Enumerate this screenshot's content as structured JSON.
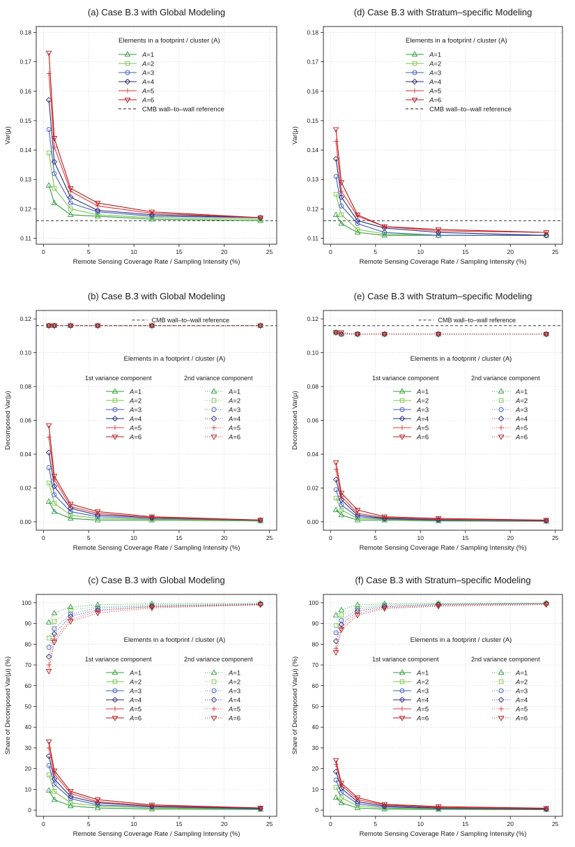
{
  "shared": {
    "xlabel": "Remote Sensing Coverage Rate / Sampling Intensity (%)",
    "x": [
      0.6,
      1.2,
      3,
      6,
      12,
      24
    ],
    "xticks": [
      0,
      5,
      10,
      15,
      20,
      25
    ],
    "a_values": [
      "1",
      "2",
      "3",
      "4",
      "5",
      "6"
    ],
    "legend_title": "Elements in a footprint / cluster (A)",
    "legend_sub1": "1st variance component",
    "legend_sub2": "2nd variance component",
    "cmb_label": "CMB wall–to–wall reference",
    "colors": [
      "#2e9e3c",
      "#79c447",
      "#3b5cc4",
      "#2b2b7a",
      "#e03a3a",
      "#b01a1a"
    ],
    "markers": [
      "triangle-up",
      "square",
      "circle",
      "diamond",
      "plus",
      "triangle-down"
    ]
  },
  "chart_data": [
    {
      "id": "a",
      "type": "line",
      "title": "(a) Case B.3 with Global Modeling",
      "ylabel": "Var(μ)",
      "ylim": [
        0.108,
        0.182
      ],
      "yticks": [
        "0.11",
        "0.12",
        "0.13",
        "0.14",
        "0.15",
        "0.16",
        "0.17",
        "0.18"
      ],
      "reference": 0.116,
      "series": [
        {
          "name": "A=1",
          "values": [
            0.128,
            0.122,
            0.118,
            0.1175,
            0.1165,
            0.116
          ]
        },
        {
          "name": "A=2",
          "values": [
            0.139,
            0.127,
            0.12,
            0.118,
            0.117,
            0.1165
          ]
        },
        {
          "name": "A=3",
          "values": [
            0.147,
            0.132,
            0.122,
            0.119,
            0.1175,
            0.117
          ]
        },
        {
          "name": "A=4",
          "values": [
            0.157,
            0.136,
            0.124,
            0.1195,
            0.118,
            0.117
          ]
        },
        {
          "name": "A=5",
          "values": [
            0.166,
            0.141,
            0.126,
            0.121,
            0.1185,
            0.117
          ]
        },
        {
          "name": "A=6",
          "values": [
            0.173,
            0.144,
            0.127,
            0.122,
            0.119,
            0.117
          ]
        }
      ]
    },
    {
      "id": "d",
      "type": "line",
      "title": "(d) Case B.3 with Stratum–specific Modeling",
      "ylabel": "Var(μ)",
      "ylim": [
        0.108,
        0.182
      ],
      "yticks": [
        "0.11",
        "0.12",
        "0.13",
        "0.14",
        "0.15",
        "0.16",
        "0.17",
        "0.18"
      ],
      "reference": 0.116,
      "series": [
        {
          "name": "A=1",
          "values": [
            0.118,
            0.115,
            0.112,
            0.111,
            0.111,
            0.111
          ]
        },
        {
          "name": "A=2",
          "values": [
            0.125,
            0.118,
            0.113,
            0.1115,
            0.111,
            0.111
          ]
        },
        {
          "name": "A=3",
          "values": [
            0.131,
            0.121,
            0.115,
            0.112,
            0.111,
            0.111
          ]
        },
        {
          "name": "A=4",
          "values": [
            0.137,
            0.124,
            0.116,
            0.1135,
            0.112,
            0.111
          ]
        },
        {
          "name": "A=5",
          "values": [
            0.143,
            0.126,
            0.1175,
            0.114,
            0.1125,
            0.112
          ]
        },
        {
          "name": "A=6",
          "values": [
            0.147,
            0.129,
            0.118,
            0.114,
            0.113,
            0.112
          ]
        }
      ]
    },
    {
      "id": "b",
      "type": "line",
      "title": "(b) Case B.3 with Global Modeling",
      "ylabel": "Decomposed Var(μ)",
      "ylim": [
        -0.005,
        0.125
      ],
      "yticks": [
        "0.00",
        "0.02",
        "0.04",
        "0.06",
        "0.08",
        "0.10",
        "0.12"
      ],
      "reference": 0.116,
      "series_first": [
        {
          "name": "A=1",
          "values": [
            0.012,
            0.006,
            0.002,
            0.001,
            0.001,
            0.0005
          ]
        },
        {
          "name": "A=2",
          "values": [
            0.023,
            0.011,
            0.004,
            0.002,
            0.0015,
            0.0005
          ]
        },
        {
          "name": "A=3",
          "values": [
            0.032,
            0.016,
            0.006,
            0.003,
            0.002,
            0.0008
          ]
        },
        {
          "name": "A=4",
          "values": [
            0.041,
            0.021,
            0.008,
            0.004,
            0.0025,
            0.001
          ]
        },
        {
          "name": "A=5",
          "values": [
            0.05,
            0.025,
            0.009,
            0.005,
            0.0025,
            0.001
          ]
        },
        {
          "name": "A=6",
          "values": [
            0.057,
            0.027,
            0.0105,
            0.006,
            0.003,
            0.001
          ]
        }
      ],
      "series_second": [
        {
          "name": "A=1",
          "values": [
            0.116,
            0.116,
            0.116,
            0.116,
            0.116,
            0.116
          ]
        },
        {
          "name": "A=2",
          "values": [
            0.116,
            0.116,
            0.116,
            0.116,
            0.116,
            0.116
          ]
        },
        {
          "name": "A=3",
          "values": [
            0.116,
            0.116,
            0.116,
            0.116,
            0.116,
            0.116
          ]
        },
        {
          "name": "A=4",
          "values": [
            0.116,
            0.116,
            0.116,
            0.116,
            0.116,
            0.116
          ]
        },
        {
          "name": "A=5",
          "values": [
            0.116,
            0.116,
            0.116,
            0.116,
            0.116,
            0.116
          ]
        },
        {
          "name": "A=6",
          "values": [
            0.116,
            0.116,
            0.116,
            0.116,
            0.116,
            0.116
          ]
        }
      ]
    },
    {
      "id": "e",
      "type": "line",
      "title": "(e) Case B.3 with Stratum–specific Modeling",
      "ylabel": "Decomposed Var(μ)",
      "ylim": [
        -0.005,
        0.125
      ],
      "yticks": [
        "0.00",
        "0.02",
        "0.04",
        "0.06",
        "0.08",
        "0.10",
        "0.12"
      ],
      "reference": 0.116,
      "series_first": [
        {
          "name": "A=1",
          "values": [
            0.007,
            0.004,
            0.001,
            0.001,
            0.0005,
            0.0003
          ]
        },
        {
          "name": "A=2",
          "values": [
            0.014,
            0.007,
            0.002,
            0.0015,
            0.0008,
            0.0004
          ]
        },
        {
          "name": "A=3",
          "values": [
            0.019,
            0.01,
            0.003,
            0.0018,
            0.001,
            0.0005
          ]
        },
        {
          "name": "A=4",
          "values": [
            0.025,
            0.013,
            0.004,
            0.002,
            0.0013,
            0.0006
          ]
        },
        {
          "name": "A=5",
          "values": [
            0.031,
            0.015,
            0.005,
            0.0025,
            0.0015,
            0.0008
          ]
        },
        {
          "name": "A=6",
          "values": [
            0.035,
            0.017,
            0.007,
            0.003,
            0.002,
            0.001
          ]
        }
      ],
      "series_second": [
        {
          "name": "A=1",
          "values": [
            0.112,
            0.111,
            0.111,
            0.111,
            0.111,
            0.111
          ]
        },
        {
          "name": "A=2",
          "values": [
            0.112,
            0.111,
            0.111,
            0.111,
            0.111,
            0.111
          ]
        },
        {
          "name": "A=3",
          "values": [
            0.112,
            0.111,
            0.111,
            0.111,
            0.111,
            0.111
          ]
        },
        {
          "name": "A=4",
          "values": [
            0.112,
            0.111,
            0.111,
            0.111,
            0.111,
            0.111
          ]
        },
        {
          "name": "A=5",
          "values": [
            0.112,
            0.111,
            0.111,
            0.111,
            0.111,
            0.111
          ]
        },
        {
          "name": "A=6",
          "values": [
            0.112,
            0.112,
            0.111,
            0.111,
            0.111,
            0.111
          ]
        }
      ]
    },
    {
      "id": "c",
      "type": "line",
      "title": "(c) Case B.3 with Global Modeling",
      "ylabel": "Share of Decomposed Var(μ) (%)",
      "ylim": [
        -3,
        104
      ],
      "yticks": [
        "0",
        "10",
        "20",
        "30",
        "40",
        "50",
        "60",
        "70",
        "80",
        "90",
        "100"
      ],
      "series_first": [
        {
          "name": "A=1",
          "values": [
            9.5,
            5,
            2,
            1,
            0.5,
            0.3
          ]
        },
        {
          "name": "A=2",
          "values": [
            17,
            9,
            3.5,
            2,
            1,
            0.5
          ]
        },
        {
          "name": "A=3",
          "values": [
            21.5,
            12.5,
            5.5,
            2.5,
            1.5,
            0.6
          ]
        },
        {
          "name": "A=4",
          "values": [
            26,
            15,
            6.5,
            3.5,
            1.8,
            0.8
          ]
        },
        {
          "name": "A=5",
          "values": [
            30,
            17.5,
            8,
            4,
            2,
            1
          ]
        },
        {
          "name": "A=6",
          "values": [
            33,
            19,
            9,
            5,
            2.5,
            1
          ]
        }
      ],
      "series_second": [
        {
          "name": "A=1",
          "values": [
            90.5,
            95,
            98,
            99,
            99.5,
            99.7
          ]
        },
        {
          "name": "A=2",
          "values": [
            83,
            91,
            96.5,
            98,
            99,
            99.5
          ]
        },
        {
          "name": "A=3",
          "values": [
            78.5,
            87.5,
            94.5,
            97.5,
            98.5,
            99.4
          ]
        },
        {
          "name": "A=4",
          "values": [
            74,
            85,
            93.5,
            96.5,
            98.2,
            99.2
          ]
        },
        {
          "name": "A=5",
          "values": [
            70,
            82.5,
            92,
            96,
            98,
            99
          ]
        },
        {
          "name": "A=6",
          "values": [
            67,
            81,
            91,
            95,
            97.5,
            99
          ]
        }
      ]
    },
    {
      "id": "f",
      "type": "line",
      "title": "(f) Case B.3 with Stratum–specific Modeling",
      "ylabel": "Share of Decomposed Var(μ) (%)",
      "ylim": [
        -3,
        104
      ],
      "yticks": [
        "0",
        "10",
        "20",
        "30",
        "40",
        "50",
        "60",
        "70",
        "80",
        "90",
        "100"
      ],
      "series_first": [
        {
          "name": "A=1",
          "values": [
            6,
            3.5,
            1,
            0.5,
            0.3,
            0.2
          ]
        },
        {
          "name": "A=2",
          "values": [
            11,
            6,
            2,
            1,
            0.5,
            0.3
          ]
        },
        {
          "name": "A=3",
          "values": [
            14.5,
            8.5,
            3,
            1.5,
            0.8,
            0.4
          ]
        },
        {
          "name": "A=4",
          "values": [
            18.5,
            10.5,
            4,
            2,
            1,
            0.5
          ]
        },
        {
          "name": "A=5",
          "values": [
            22,
            12,
            5,
            2.5,
            1.3,
            0.7
          ]
        },
        {
          "name": "A=6",
          "values": [
            24,
            13,
            6,
            2.8,
            1.7,
            0.9
          ]
        }
      ],
      "series_second": [
        {
          "name": "A=1",
          "values": [
            94,
            96.5,
            99,
            99.5,
            99.7,
            99.8
          ]
        },
        {
          "name": "A=2",
          "values": [
            89,
            94,
            98,
            99,
            99.5,
            99.7
          ]
        },
        {
          "name": "A=3",
          "values": [
            85.5,
            91.5,
            97,
            98.5,
            99.2,
            99.6
          ]
        },
        {
          "name": "A=4",
          "values": [
            81.5,
            89.5,
            96,
            98,
            99,
            99.5
          ]
        },
        {
          "name": "A=5",
          "values": [
            78,
            88,
            95,
            97.5,
            98.7,
            99.3
          ]
        },
        {
          "name": "A=6",
          "values": [
            76,
            87,
            94,
            97.2,
            98.3,
            99.1
          ]
        }
      ]
    }
  ]
}
